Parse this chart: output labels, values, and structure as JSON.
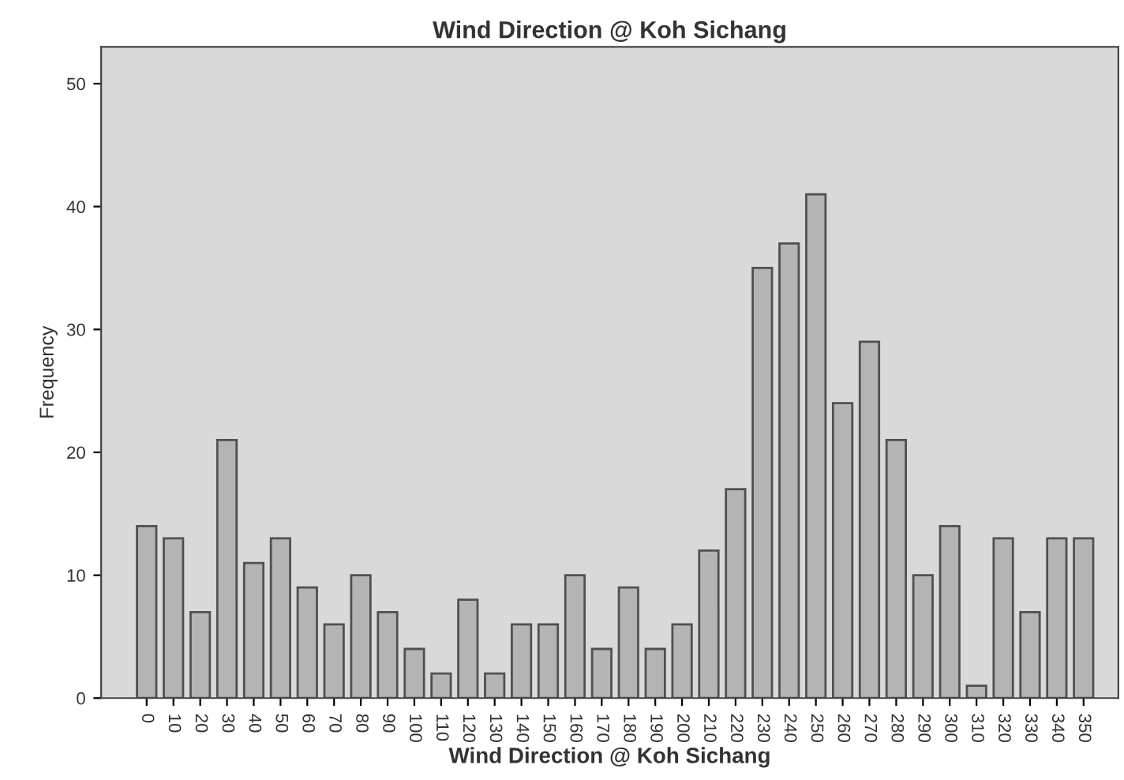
{
  "chart_data": {
    "type": "bar",
    "title": "Wind Direction @ Koh Sichang",
    "xlabel": "Wind Direction @ Koh Sichang",
    "ylabel": "Frequency",
    "categories": [
      "0",
      "10",
      "20",
      "30",
      "40",
      "50",
      "60",
      "70",
      "80",
      "90",
      "100",
      "110",
      "120",
      "130",
      "140",
      "150",
      "160",
      "170",
      "180",
      "190",
      "200",
      "210",
      "220",
      "230",
      "240",
      "250",
      "260",
      "270",
      "280",
      "290",
      "300",
      "310",
      "320",
      "330",
      "340",
      "350"
    ],
    "values": [
      14,
      13,
      7,
      21,
      11,
      13,
      9,
      6,
      10,
      7,
      4,
      2,
      8,
      2,
      6,
      6,
      10,
      4,
      9,
      4,
      6,
      12,
      17,
      35,
      37,
      41,
      24,
      29,
      21,
      10,
      14,
      1,
      13,
      7,
      13,
      13
    ],
    "color": "#b4b4b4",
    "ylim": [
      0,
      53
    ],
    "yticks": [
      0,
      10,
      20,
      30,
      40,
      50
    ],
    "grid": false,
    "legend": false
  }
}
